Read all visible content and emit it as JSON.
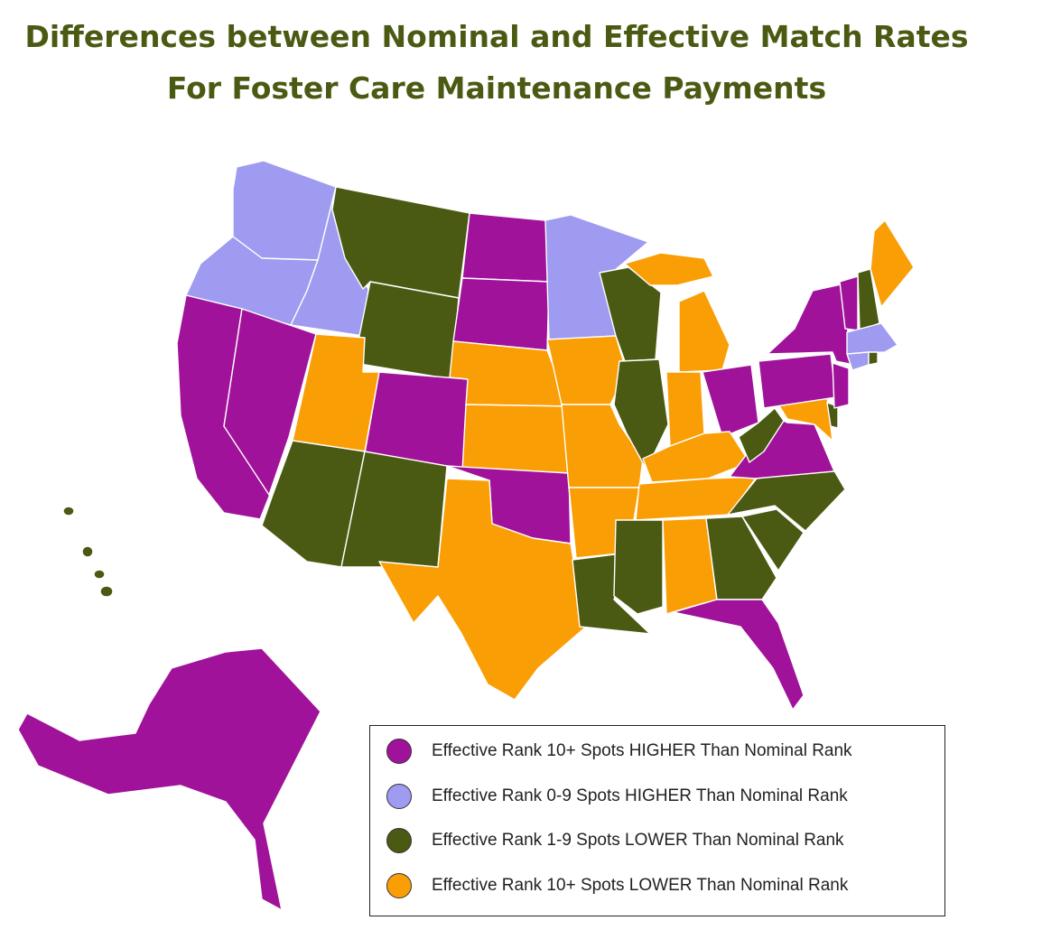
{
  "title": {
    "line1": "Differences between Nominal and Effective Match Rates",
    "line2": "For Foster Care Maintenance Payments",
    "color": "#4a5a12"
  },
  "categories": {
    "higher10": {
      "label": "Effective Rank 10+ Spots HIGHER Than Nominal Rank",
      "color": "#a0129a"
    },
    "higher09": {
      "label": "Effective Rank 0-9 Spots HIGHER Than Nominal Rank",
      "color": "#9e9bf0"
    },
    "lower19": {
      "label": "Effective Rank 1-9 Spots LOWER Than Nominal Rank",
      "color": "#4a5a12"
    },
    "lower10": {
      "label": "Effective Rank 10+ Spots LOWER Than Nominal Rank",
      "color": "#fa9e06"
    }
  },
  "legend_order": [
    "higher10",
    "higher09",
    "lower19",
    "lower10"
  ],
  "states": {
    "WA": "higher09",
    "OR": "higher09",
    "ID": "higher09",
    "MN": "higher09",
    "MA": "higher09",
    "CT": "higher09",
    "CA": "higher10",
    "NV": "higher10",
    "CO": "higher10",
    "ND": "higher10",
    "SD": "higher10",
    "OK": "higher10",
    "OH": "higher10",
    "NY": "higher10",
    "PA": "higher10",
    "NJ": "higher10",
    "VT": "higher10",
    "VA": "higher10",
    "FL": "higher10",
    "AK": "higher10",
    "MT": "lower19",
    "WY": "lower19",
    "AZ": "lower19",
    "NM": "lower19",
    "WI": "lower19",
    "IL": "lower19",
    "LA": "lower19",
    "MS": "lower19",
    "GA": "lower19",
    "SC": "lower19",
    "NC": "lower19",
    "WV": "lower19",
    "NH": "lower19",
    "RI": "lower19",
    "DE": "lower19",
    "HI": "lower19",
    "UT": "lower10",
    "NE": "lower10",
    "KS": "lower10",
    "TX": "lower10",
    "IA": "lower10",
    "MO": "lower10",
    "AR": "lower10",
    "MI": "lower10",
    "IN": "lower10",
    "KY": "lower10",
    "TN": "lower10",
    "AL": "lower10",
    "ME": "lower10",
    "MD": "lower10"
  }
}
